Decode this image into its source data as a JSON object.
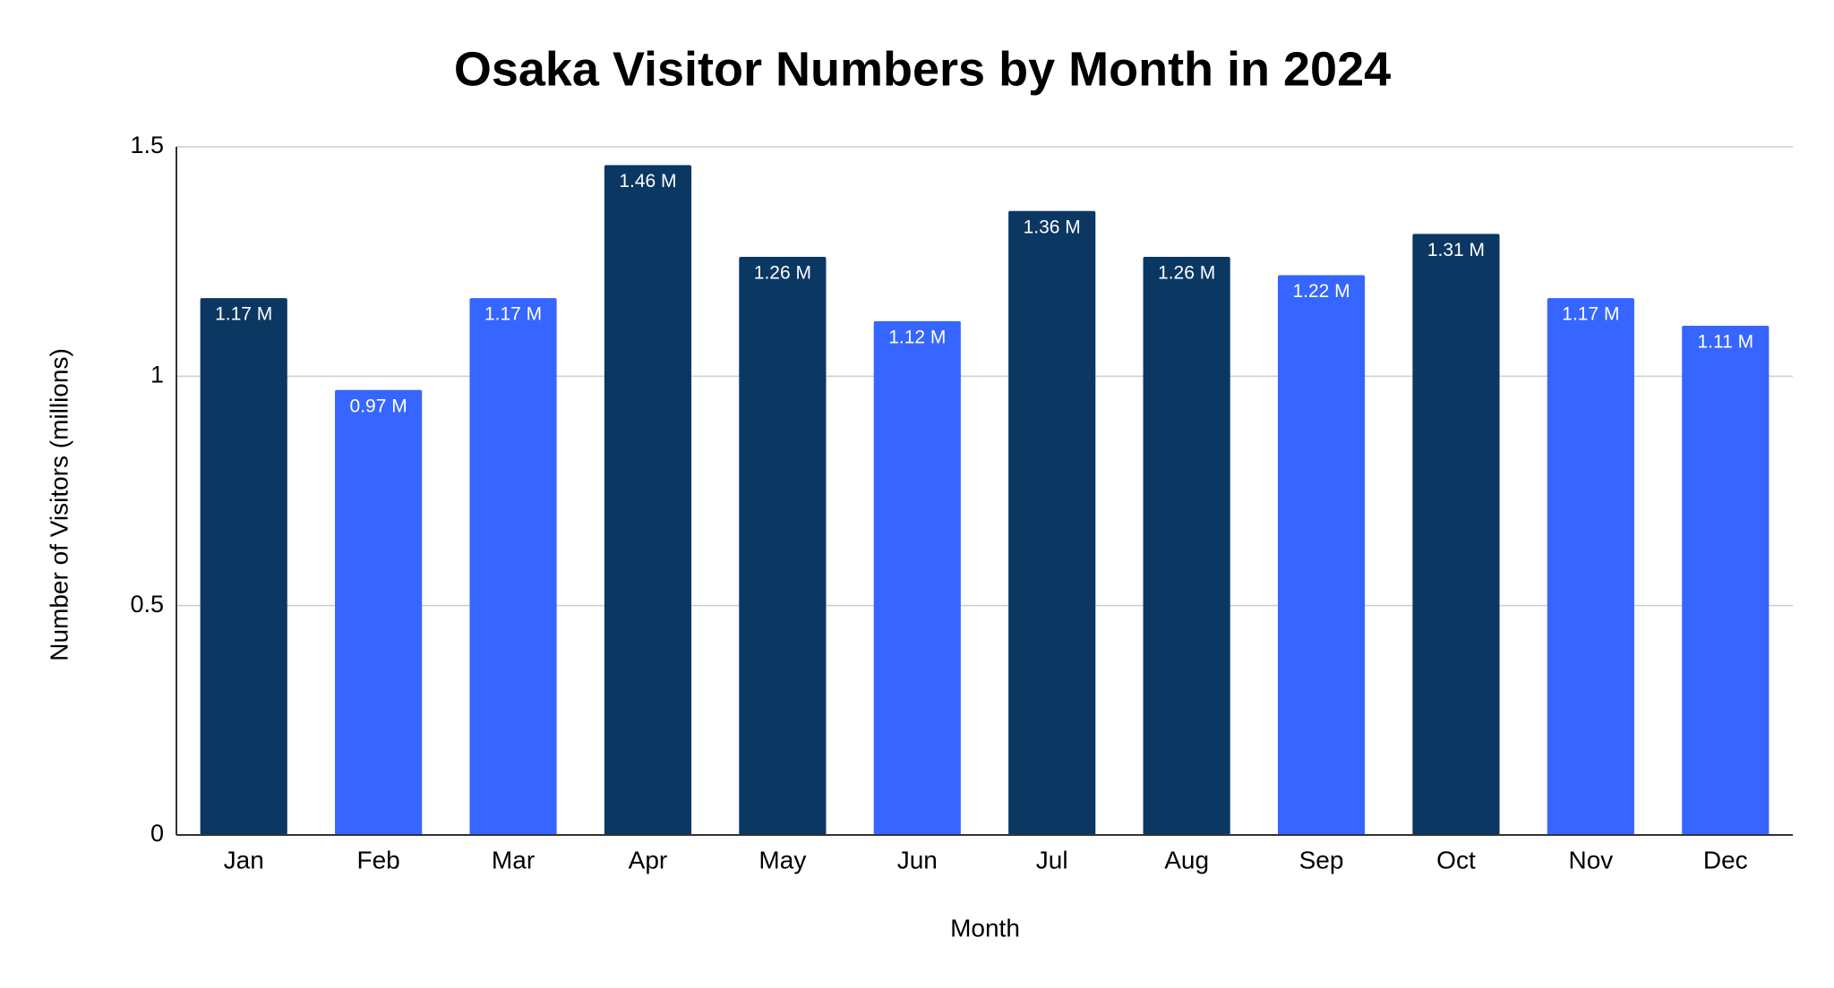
{
  "chart_data": {
    "type": "bar",
    "title": "Osaka Visitor Numbers by Month in 2024",
    "x_label": "Month",
    "y_label": "Number of Visitors (millions)",
    "categories": [
      "Jan",
      "Feb",
      "Mar",
      "Apr",
      "May",
      "Jun",
      "Jul",
      "Aug",
      "Sep",
      "Oct",
      "Nov",
      "Dec"
    ],
    "values": [
      1.17,
      0.97,
      1.17,
      1.46,
      1.26,
      1.12,
      1.36,
      1.26,
      1.22,
      1.31,
      1.17,
      1.11
    ],
    "value_labels": [
      "1.17 M",
      "0.97 M",
      "1.17 M",
      "1.46 M",
      "1.26 M",
      "1.12 M",
      "1.36 M",
      "1.26 M",
      "1.22 M",
      "1.31 M",
      "1.17 M",
      "1.11 M"
    ],
    "colors": [
      "#0b3763",
      "#3666ff",
      "#3666ff",
      "#0b3763",
      "#0b3763",
      "#3666ff",
      "#0b3763",
      "#0b3763",
      "#3666ff",
      "#0b3763",
      "#3666ff",
      "#3666ff"
    ],
    "ylim": [
      0,
      1.5
    ],
    "yticks": [
      0,
      0.5,
      1,
      1.5
    ],
    "grid": true
  }
}
